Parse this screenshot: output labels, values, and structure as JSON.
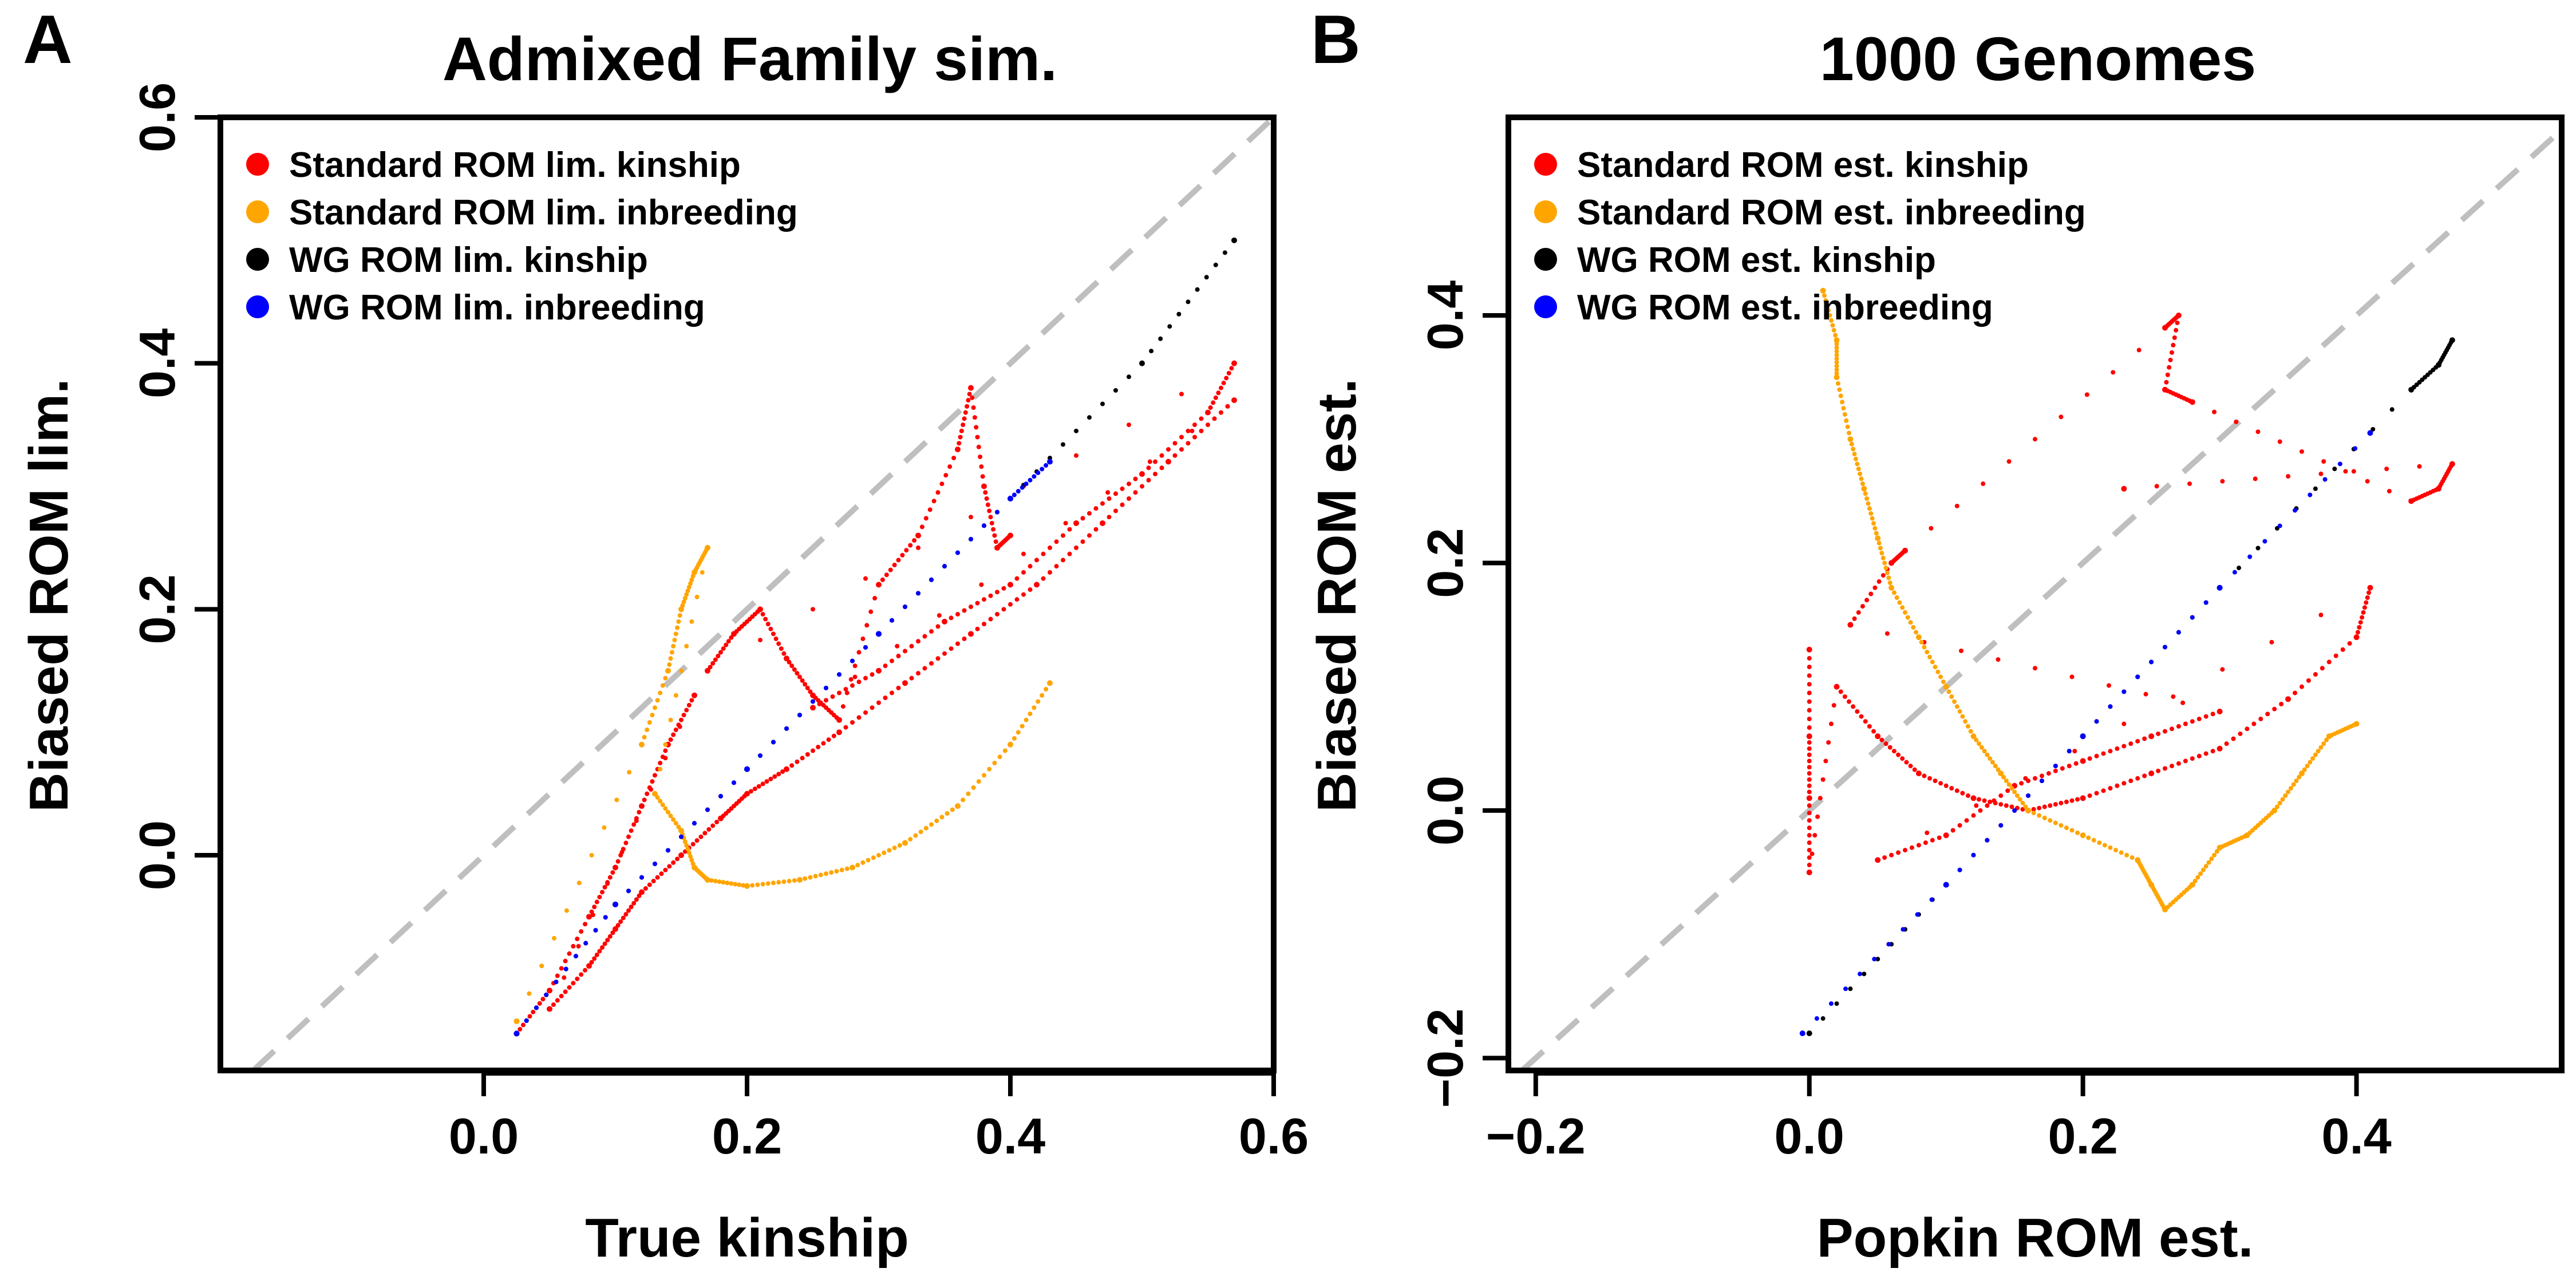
{
  "panels": [
    {
      "letter": "A",
      "title": "Admixed Family sim.",
      "xlabel": "True kinship",
      "ylabel": "Biased ROM lim."
    },
    {
      "letter": "B",
      "title": "1000 Genomes",
      "xlabel": "Popkin ROM est.",
      "ylabel": "Biased ROM est."
    }
  ],
  "chart_data": [
    {
      "type": "scatter",
      "title": "Admixed Family sim.",
      "xlabel": "True kinship",
      "ylabel": "Biased ROM lim.",
      "xlim": [
        -0.2,
        0.6
      ],
      "ylim": [
        -0.175,
        0.6
      ],
      "xticks": [
        "0.0",
        "0.2",
        "0.4",
        "0.6"
      ],
      "xtick_values": [
        0.0,
        0.2,
        0.4,
        0.6
      ],
      "yticks": [
        "0.0",
        "0.2",
        "0.4",
        "0.6"
      ],
      "ytick_values": [
        0.0,
        0.2,
        0.4,
        0.6
      ],
      "reference_line": {
        "style": "dashed",
        "color": "#bfbfbf",
        "slope": 1,
        "intercept": 0
      },
      "legend_position": "top-left",
      "colors": {
        "standard_kinship": "#ff0000",
        "standard_inbreeding": "#ffa500",
        "wg_kinship": "#000000",
        "wg_inbreeding": "#0000ff"
      },
      "series": [
        {
          "name": "Standard ROM lim. kinship",
          "color": "#ff0000",
          "points": [
            [
              0.025,
              -0.145
            ],
            [
              0.05,
              -0.11
            ],
            [
              0.08,
              -0.05
            ],
            [
              0.1,
              -0.01
            ],
            [
              0.12,
              0.04
            ],
            [
              0.14,
              0.09
            ],
            [
              0.16,
              0.13
            ],
            [
              0.05,
              -0.125
            ],
            [
              0.08,
              -0.09
            ],
            [
              0.1,
              -0.06
            ],
            [
              0.12,
              -0.03
            ],
            [
              0.15,
              0.0
            ],
            [
              0.18,
              0.03
            ],
            [
              0.2,
              0.05
            ],
            [
              0.23,
              0.07
            ],
            [
              0.27,
              0.1
            ],
            [
              0.32,
              0.14
            ],
            [
              0.37,
              0.18
            ],
            [
              0.42,
              0.22
            ],
            [
              0.47,
              0.27
            ],
            [
              0.52,
              0.32
            ],
            [
              0.57,
              0.37
            ],
            [
              0.25,
              0.12
            ],
            [
              0.3,
              0.15
            ],
            [
              0.35,
              0.19
            ],
            [
              0.4,
              0.22
            ],
            [
              0.45,
              0.27
            ],
            [
              0.5,
              0.31
            ],
            [
              0.55,
              0.36
            ],
            [
              0.57,
              0.4
            ],
            [
              0.17,
              0.15
            ],
            [
              0.19,
              0.18
            ],
            [
              0.21,
              0.2
            ],
            [
              0.23,
              0.16
            ],
            [
              0.25,
              0.13
            ],
            [
              0.27,
              0.11
            ],
            [
              0.3,
              0.22
            ],
            [
              0.33,
              0.26
            ],
            [
              0.36,
              0.33
            ],
            [
              0.37,
              0.38
            ],
            [
              0.38,
              0.3
            ],
            [
              0.39,
              0.25
            ],
            [
              0.4,
              0.26
            ]
          ]
        },
        {
          "name": "Standard ROM lim. inbreeding",
          "color": "#ffa500",
          "points": [
            [
              0.025,
              -0.135
            ],
            [
              0.12,
              0.09
            ],
            [
              0.14,
              0.15
            ],
            [
              0.15,
              0.2
            ],
            [
              0.16,
              0.23
            ],
            [
              0.17,
              0.25
            ],
            [
              0.13,
              0.05
            ],
            [
              0.15,
              0.02
            ],
            [
              0.16,
              -0.01
            ],
            [
              0.17,
              -0.02
            ],
            [
              0.2,
              -0.025
            ],
            [
              0.24,
              -0.02
            ],
            [
              0.28,
              -0.01
            ],
            [
              0.32,
              0.01
            ],
            [
              0.36,
              0.04
            ],
            [
              0.4,
              0.09
            ],
            [
              0.43,
              0.14
            ]
          ]
        },
        {
          "name": "WG ROM lim. kinship",
          "color": "#000000",
          "points": [
            [
              0.025,
              -0.145
            ],
            [
              0.1,
              -0.04
            ],
            [
              0.2,
              0.07
            ],
            [
              0.3,
              0.18
            ],
            [
              0.4,
              0.29
            ],
            [
              0.5,
              0.4
            ],
            [
              0.57,
              0.5
            ]
          ]
        },
        {
          "name": "WG ROM lim. inbreeding",
          "color": "#0000ff",
          "points": [
            [
              0.025,
              -0.145
            ],
            [
              0.1,
              -0.04
            ],
            [
              0.2,
              0.07
            ],
            [
              0.3,
              0.18
            ],
            [
              0.4,
              0.29
            ],
            [
              0.43,
              0.32
            ]
          ]
        }
      ]
    },
    {
      "type": "scatter",
      "title": "1000 Genomes",
      "xlabel": "Popkin ROM est.",
      "ylabel": "Biased ROM est.",
      "xlim": [
        -0.22,
        0.55
      ],
      "ylim": [
        -0.21,
        0.56
      ],
      "xticks": [
        "−0.2",
        "0.0",
        "0.2",
        "0.4"
      ],
      "xtick_values": [
        -0.2,
        0.0,
        0.2,
        0.4
      ],
      "yticks": [
        "−0.2",
        "0.0",
        "0.2",
        "0.4"
      ],
      "ytick_values": [
        -0.2,
        0.0,
        0.2,
        0.4
      ],
      "reference_line": {
        "style": "dashed",
        "color": "#bfbfbf",
        "slope": 1,
        "intercept": 0
      },
      "legend_position": "top-left",
      "colors": {
        "standard_kinship": "#ff0000",
        "standard_inbreeding": "#ffa500",
        "wg_kinship": "#000000",
        "wg_inbreeding": "#0000ff"
      },
      "series": [
        {
          "name": "Standard ROM est. kinship",
          "color": "#ff0000",
          "points": [
            [
              0.0,
              0.13
            ],
            [
              0.0,
              0.06
            ],
            [
              0.0,
              0.01
            ],
            [
              0.0,
              -0.05
            ],
            [
              0.02,
              0.1
            ],
            [
              0.05,
              0.06
            ],
            [
              0.08,
              0.03
            ],
            [
              0.12,
              0.01
            ],
            [
              0.16,
              0.0
            ],
            [
              0.2,
              0.01
            ],
            [
              0.25,
              0.03
            ],
            [
              0.3,
              0.05
            ],
            [
              0.35,
              0.09
            ],
            [
              0.4,
              0.14
            ],
            [
              0.41,
              0.18
            ],
            [
              0.05,
              -0.04
            ],
            [
              0.1,
              -0.02
            ],
            [
              0.15,
              0.02
            ],
            [
              0.2,
              0.04
            ],
            [
              0.25,
              0.06
            ],
            [
              0.3,
              0.08
            ],
            [
              0.03,
              0.15
            ],
            [
              0.06,
              0.2
            ],
            [
              0.07,
              0.21
            ],
            [
              0.26,
              0.39
            ],
            [
              0.27,
              0.4
            ],
            [
              0.26,
              0.34
            ],
            [
              0.28,
              0.33
            ],
            [
              0.44,
              0.25
            ],
            [
              0.46,
              0.26
            ],
            [
              0.47,
              0.28
            ],
            [
              0.23,
              0.26
            ]
          ]
        },
        {
          "name": "Standard ROM est. inbreeding",
          "color": "#ffa500",
          "points": [
            [
              0.01,
              0.42
            ],
            [
              0.02,
              0.38
            ],
            [
              0.02,
              0.35
            ],
            [
              0.03,
              0.3
            ],
            [
              0.04,
              0.26
            ],
            [
              0.05,
              0.22
            ],
            [
              0.06,
              0.18
            ],
            [
              0.08,
              0.14
            ],
            [
              0.1,
              0.1
            ],
            [
              0.12,
              0.06
            ],
            [
              0.14,
              0.03
            ],
            [
              0.16,
              0.0
            ],
            [
              0.2,
              -0.02
            ],
            [
              0.24,
              -0.04
            ],
            [
              0.25,
              -0.06
            ],
            [
              0.26,
              -0.08
            ],
            [
              0.28,
              -0.06
            ],
            [
              0.3,
              -0.03
            ],
            [
              0.32,
              -0.02
            ],
            [
              0.34,
              0.0
            ],
            [
              0.36,
              0.03
            ],
            [
              0.38,
              0.06
            ],
            [
              0.4,
              0.07
            ]
          ]
        },
        {
          "name": "WG ROM est. kinship",
          "color": "#000000",
          "points": [
            [
              0.0,
              -0.18
            ],
            [
              0.1,
              -0.06
            ],
            [
              0.2,
              0.06
            ],
            [
              0.3,
              0.18
            ],
            [
              0.44,
              0.34
            ],
            [
              0.46,
              0.36
            ],
            [
              0.47,
              0.38
            ]
          ]
        },
        {
          "name": "WG ROM est. inbreeding",
          "color": "#0000ff",
          "points": [
            [
              -0.005,
              -0.18
            ],
            [
              0.1,
              -0.06
            ],
            [
              0.2,
              0.06
            ],
            [
              0.3,
              0.18
            ],
            [
              0.41,
              0.305
            ]
          ]
        }
      ]
    }
  ]
}
